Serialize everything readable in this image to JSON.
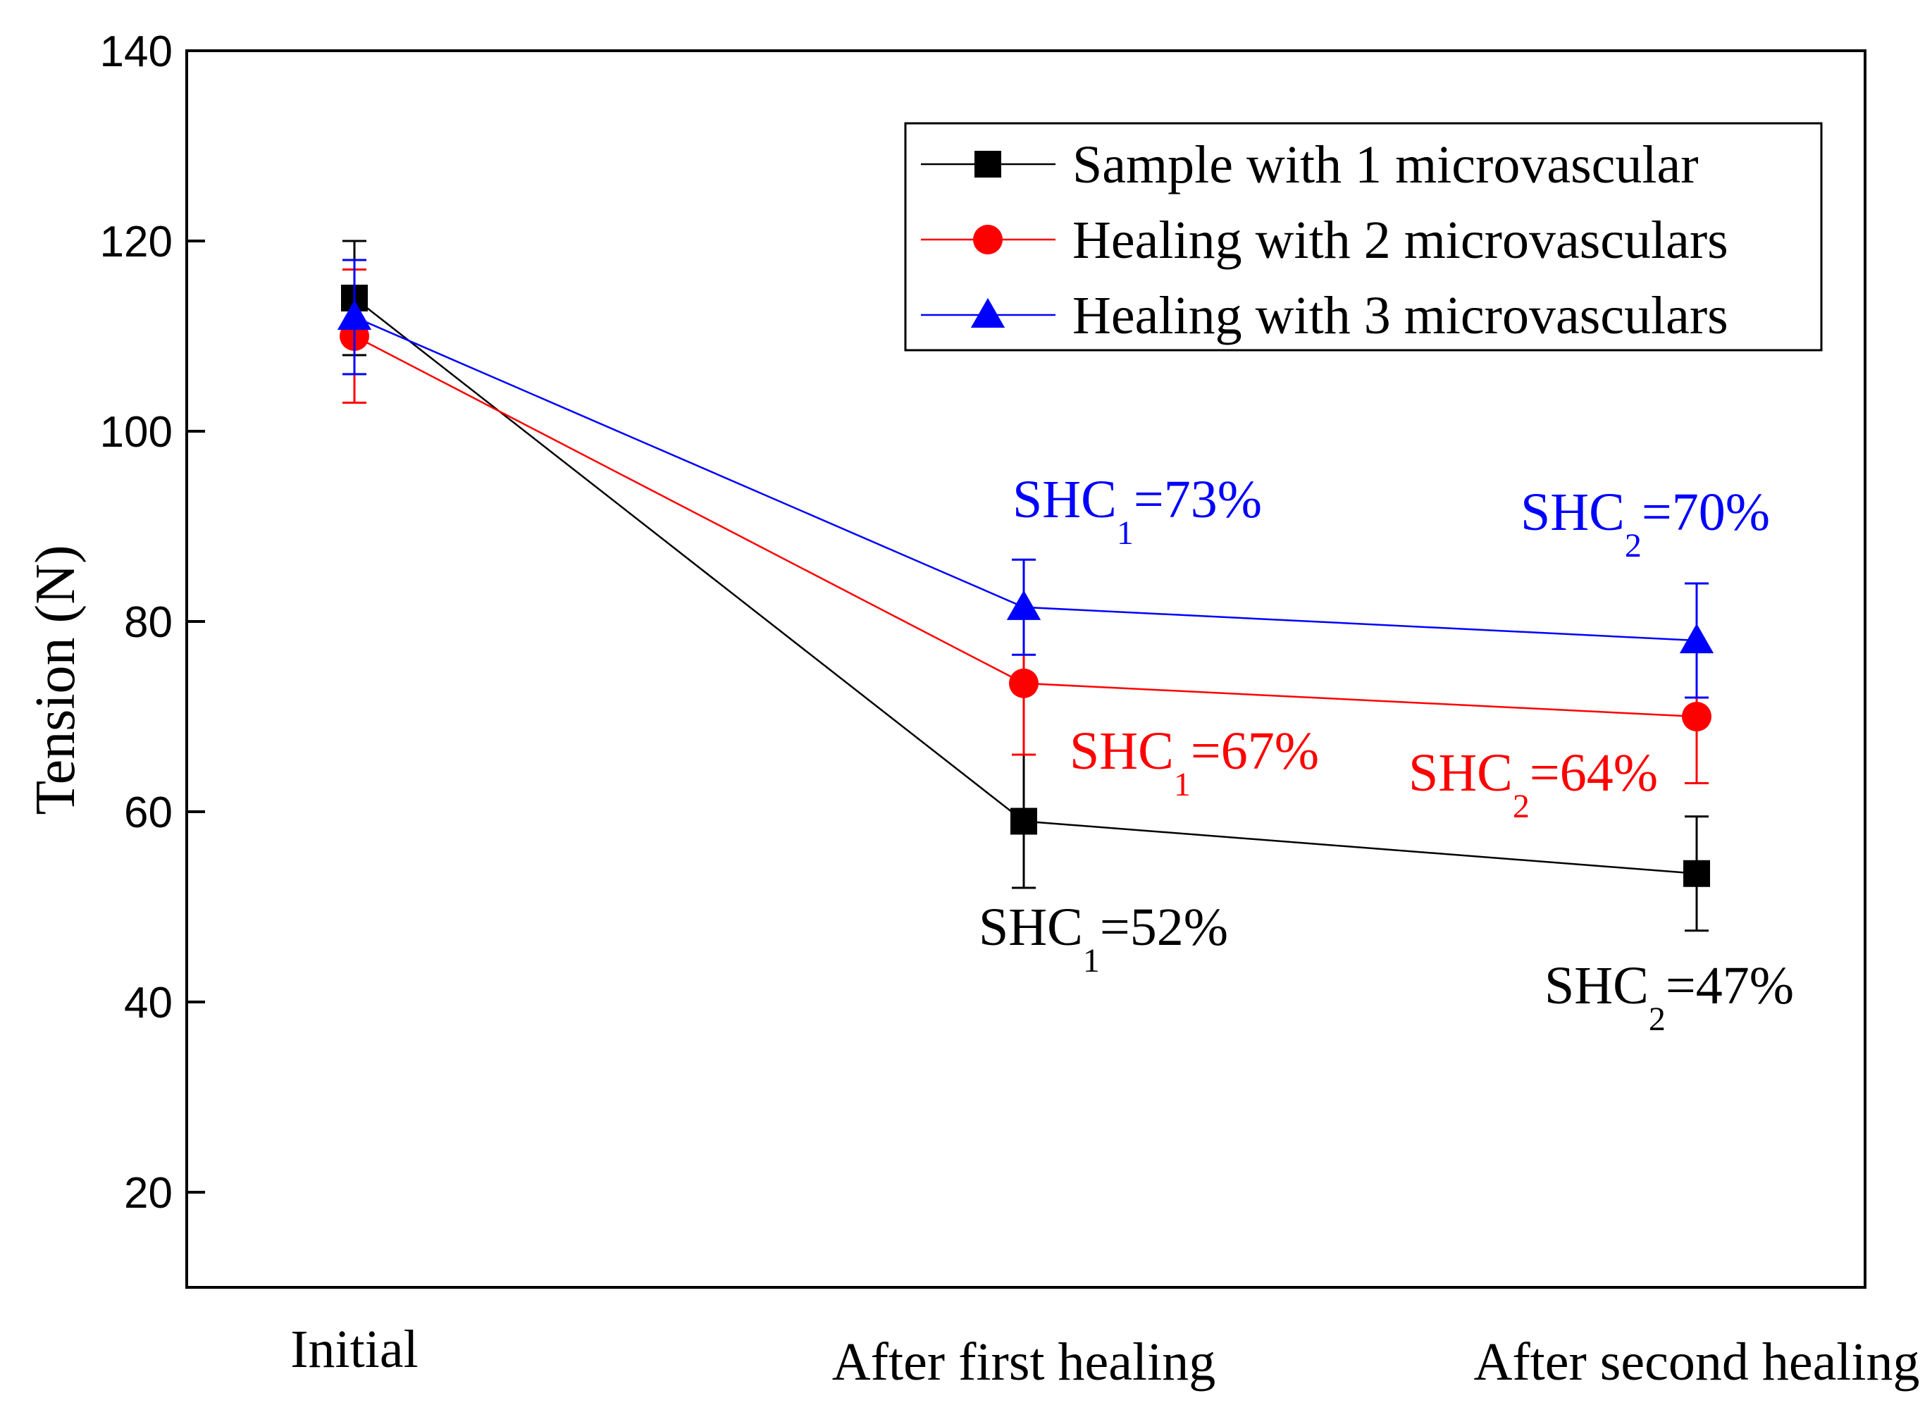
{
  "chart_data": {
    "type": "line",
    "title": "",
    "xlabel": "",
    "ylabel": "Tension (N)",
    "ylim": [
      10,
      140
    ],
    "yticks": [
      20,
      40,
      60,
      80,
      100,
      120,
      140
    ],
    "categories": [
      "Initial",
      "After first healing",
      "After second healing"
    ],
    "series": [
      {
        "name": "Sample with 1 microvascular",
        "color": "#000000",
        "marker": "square",
        "values": [
          114,
          59,
          53.5
        ],
        "errors": [
          6,
          7,
          6
        ]
      },
      {
        "name": "Healing with 2 microvasculars",
        "color": "#ff0000",
        "marker": "circle",
        "values": [
          110,
          73.5,
          70
        ],
        "errors": [
          7,
          7.5,
          7
        ]
      },
      {
        "name": "Healing with 3 microvasculars",
        "color": "#0000ff",
        "marker": "triangle",
        "values": [
          112,
          81.5,
          78
        ],
        "errors": [
          6,
          5,
          6
        ]
      }
    ],
    "legend_position": "top-right",
    "grid": false,
    "annotations": [
      {
        "base": "SHC",
        "sub": "1",
        "rest": "=73%",
        "color": "#0000ff",
        "category": "After first healing",
        "series": "Healing with 3 microvasculars"
      },
      {
        "base": "SHC",
        "sub": "2",
        "rest": "=70%",
        "color": "#0000ff",
        "category": "After second healing",
        "series": "Healing with 3 microvasculars"
      },
      {
        "base": "SHC",
        "sub": "1",
        "rest": "=67%",
        "color": "#ff0000",
        "category": "After first healing",
        "series": "Healing with 2 microvasculars"
      },
      {
        "base": "SHC",
        "sub": "2",
        "rest": "=64%",
        "color": "#ff0000",
        "category": "After second healing",
        "series": "Healing with 2 microvasculars"
      },
      {
        "base": "SHC",
        "sub": "1",
        "rest": "=52%",
        "color": "#000000",
        "category": "After first healing",
        "series": "Sample with 1 microvascular"
      },
      {
        "base": "SHC",
        "sub": "2",
        "rest": "=47%",
        "color": "#000000",
        "category": "After second healing",
        "series": "Sample with 1 microvascular"
      }
    ]
  }
}
